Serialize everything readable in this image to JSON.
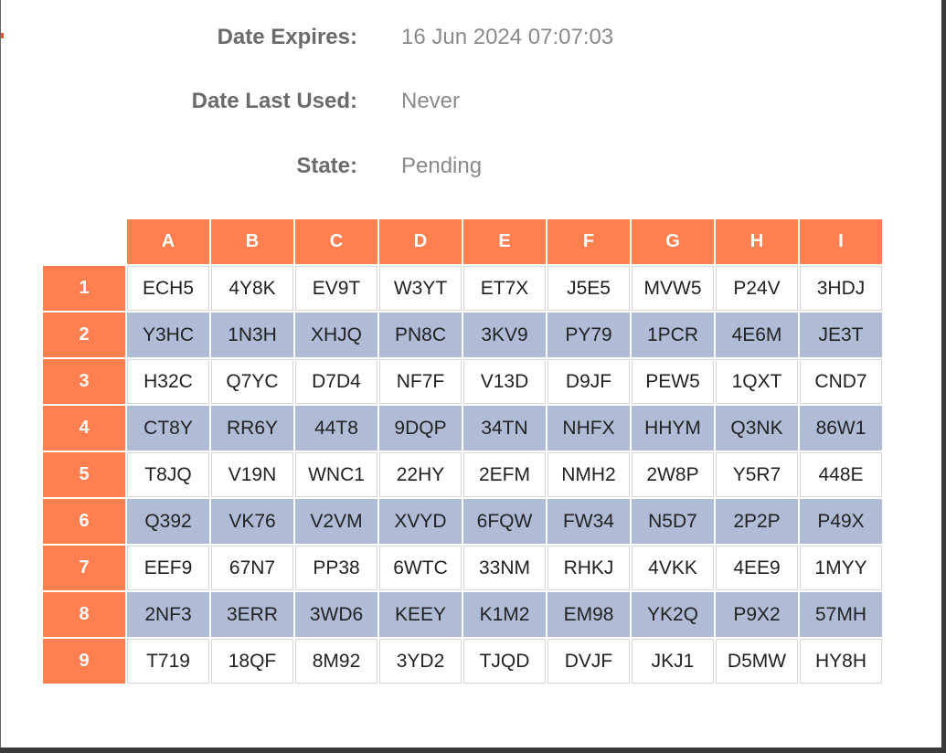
{
  "details": {
    "date_expires_label": "Date Expires:",
    "date_expires_value": "16 Jun 2024 07:07:03",
    "date_last_used_label": "Date Last Used:",
    "date_last_used_value": "Never",
    "state_label": "State:",
    "state_value": "Pending"
  },
  "grid": {
    "columns": [
      "A",
      "B",
      "C",
      "D",
      "E",
      "F",
      "G",
      "H",
      "I"
    ],
    "rows": [
      {
        "label": "1",
        "cells": [
          "ECH5",
          "4Y8K",
          "EV9T",
          "W3YT",
          "ET7X",
          "J5E5",
          "MVW5",
          "P24V",
          "3HDJ"
        ]
      },
      {
        "label": "2",
        "cells": [
          "Y3HC",
          "1N3H",
          "XHJQ",
          "PN8C",
          "3KV9",
          "PY79",
          "1PCR",
          "4E6M",
          "JE3T"
        ]
      },
      {
        "label": "3",
        "cells": [
          "H32C",
          "Q7YC",
          "D7D4",
          "NF7F",
          "V13D",
          "D9JF",
          "PEW5",
          "1QXT",
          "CND7"
        ]
      },
      {
        "label": "4",
        "cells": [
          "CT8Y",
          "RR6Y",
          "44T8",
          "9DQP",
          "34TN",
          "NHFX",
          "HHYM",
          "Q3NK",
          "86W1"
        ]
      },
      {
        "label": "5",
        "cells": [
          "T8JQ",
          "V19N",
          "WNC1",
          "22HY",
          "2EFM",
          "NMH2",
          "2W8P",
          "Y5R7",
          "448E"
        ]
      },
      {
        "label": "6",
        "cells": [
          "Q392",
          "VK76",
          "V2VM",
          "XVYD",
          "6FQW",
          "FW34",
          "N5D7",
          "2P2P",
          "P49X"
        ]
      },
      {
        "label": "7",
        "cells": [
          "EEF9",
          "67N7",
          "PP38",
          "6WTC",
          "33NM",
          "RHKJ",
          "4VKK",
          "4EE9",
          "1MYY"
        ]
      },
      {
        "label": "8",
        "cells": [
          "2NF3",
          "3ERR",
          "3WD6",
          "KEEY",
          "K1M2",
          "EM98",
          "YK2Q",
          "P9X2",
          "57MH"
        ]
      },
      {
        "label": "9",
        "cells": [
          "T719",
          "18QF",
          "8M92",
          "3YD2",
          "TJQD",
          "DVJF",
          "JKJ1",
          "D5MW",
          "HY8H"
        ]
      }
    ]
  },
  "colors": {
    "header_bg": "#ff7f50",
    "alt_row_bg": "#b0bbd5"
  }
}
